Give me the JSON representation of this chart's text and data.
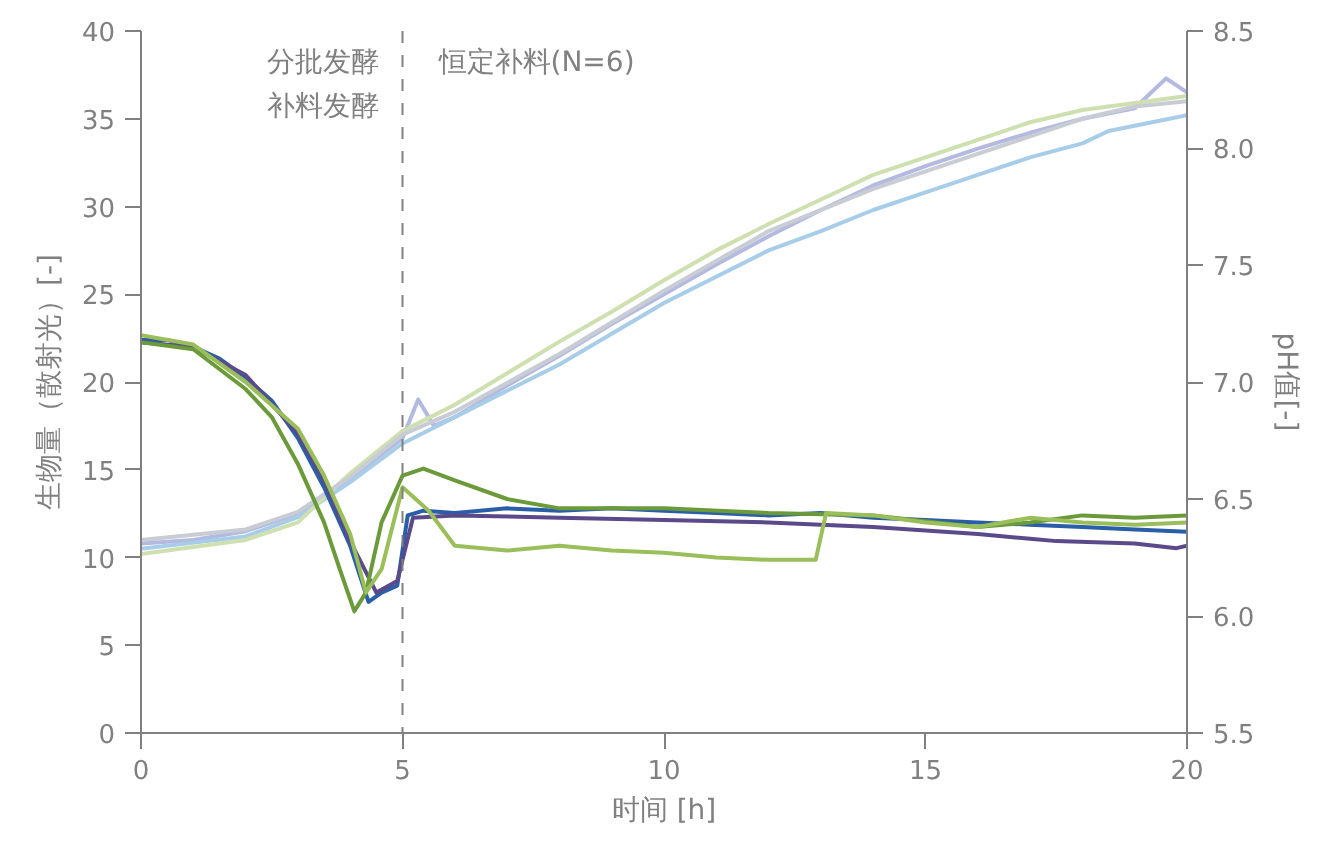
{
  "chart_data": {
    "type": "line",
    "xlabel": "时间 [h]",
    "ylabel": "生物量（散射光）[-]",
    "y2label": "pH值[-]",
    "annotations": [
      "分批发酵",
      "补料发酵",
      "恒定补料(N=6)"
    ],
    "xlim": [
      0,
      20
    ],
    "xticks": [
      0,
      5,
      10,
      15,
      20
    ],
    "ylim": [
      0,
      40
    ],
    "yticks": [
      0,
      5,
      10,
      15,
      20,
      25,
      30,
      35,
      40
    ],
    "y2lim": [
      5.5,
      8.5
    ],
    "y2ticks": [
      {
        "value": 5.5,
        "label": "5.5"
      },
      {
        "value": 6.0,
        "label": "6.0"
      },
      {
        "value": 6.5,
        "label": "6.5"
      },
      {
        "value": 7.0,
        "label": "7.0"
      },
      {
        "value": 7.5,
        "label": "7.5"
      },
      {
        "value": 8.0,
        "label": "8.0"
      },
      {
        "value": 8.5,
        "label": "8.5"
      }
    ],
    "grid": false,
    "line_style": "solid",
    "ref_lines": [
      {
        "axis": "x",
        "value": 5,
        "label": null,
        "color": "#808080",
        "line_style": "dashed"
      }
    ],
    "series": [
      {
        "color": "#b4b9e0",
        "x": [
          0,
          1,
          2,
          3,
          4,
          5,
          5.3,
          5.6,
          6,
          7,
          8,
          9,
          10,
          11,
          12,
          13,
          14,
          15,
          16,
          17,
          18,
          19,
          19.6,
          20
        ],
        "values": [
          10.8,
          11.0,
          11.5,
          12.5,
          14.5,
          16.8,
          19.0,
          17.5,
          18,
          19.8,
          21.5,
          23.3,
          25,
          26.7,
          28.3,
          29.8,
          31.2,
          32.3,
          33.3,
          34.2,
          35.0,
          35.6,
          37.3,
          36.5
        ]
      },
      {
        "color": "#a8cde8",
        "x": [
          0,
          2,
          3,
          4,
          5,
          6,
          8,
          10,
          12,
          13,
          14,
          15,
          16,
          17,
          18,
          18.5,
          19,
          20
        ],
        "values": [
          10.5,
          11.2,
          12.3,
          14.3,
          16.5,
          18.0,
          21.0,
          24.5,
          27.5,
          28.6,
          29.8,
          30.8,
          31.8,
          32.8,
          33.6,
          34.3,
          34.6,
          35.2
        ]
      },
      {
        "color": "#cfe0b0",
        "x": [
          0,
          2,
          3,
          4,
          5,
          6,
          7,
          8,
          9,
          10,
          11,
          12,
          13,
          14,
          15,
          16,
          17,
          18,
          19,
          20
        ],
        "values": [
          10.2,
          11.0,
          12.0,
          14.8,
          17.2,
          18.7,
          20.5,
          22.3,
          24.0,
          25.8,
          27.5,
          29.0,
          30.4,
          31.8,
          32.8,
          33.8,
          34.8,
          35.5,
          35.9,
          36.3
        ]
      },
      {
        "color": "#c8ccd4",
        "x": [
          0,
          2,
          3,
          4,
          5,
          6,
          8,
          10,
          12,
          14,
          15,
          16,
          17,
          18,
          19,
          20
        ],
        "values": [
          11.0,
          11.6,
          12.6,
          14.6,
          17.0,
          18.3,
          21.6,
          25.2,
          28.6,
          31.0,
          32.0,
          33.0,
          34.0,
          35.0,
          35.7,
          36.0
        ]
      },
      {
        "color": "#2b5ea8",
        "axis": "y2",
        "x": [
          0,
          0.5,
          1,
          1.5,
          2,
          2.5,
          3,
          3.5,
          4,
          4.35,
          4.6,
          4.9,
          5.1,
          5.4,
          6,
          7,
          8,
          9,
          10,
          11,
          12,
          13,
          14,
          15,
          16,
          17,
          18,
          19,
          20
        ],
        "values": [
          7.18,
          7.18,
          7.15,
          7.1,
          7.02,
          6.92,
          6.76,
          6.55,
          6.3,
          6.06,
          6.1,
          6.13,
          6.43,
          6.45,
          6.44,
          6.46,
          6.45,
          6.46,
          6.45,
          6.44,
          6.43,
          6.44,
          6.42,
          6.41,
          6.4,
          6.39,
          6.38,
          6.37,
          6.36
        ]
      },
      {
        "color": "#5a4a8a",
        "axis": "y2",
        "x": [
          0,
          1,
          2,
          3,
          3.5,
          4,
          4.5,
          4.9,
          5.2,
          6,
          8,
          10,
          12,
          14,
          16,
          17,
          17.5,
          19,
          19.8,
          20
        ],
        "values": [
          7.17,
          7.15,
          7.03,
          6.78,
          6.58,
          6.32,
          6.1,
          6.15,
          6.42,
          6.43,
          6.42,
          6.41,
          6.4,
          6.38,
          6.35,
          6.33,
          6.32,
          6.31,
          6.29,
          6.3
        ]
      },
      {
        "color": "#6a9a3a",
        "axis": "y2",
        "x": [
          0,
          1,
          2,
          2.5,
          3,
          3.5,
          3.8,
          4.08,
          4.3,
          4.6,
          5,
          5.4,
          6,
          7,
          8,
          10,
          12,
          14,
          16,
          17,
          18,
          19,
          20
        ],
        "values": [
          7.17,
          7.14,
          6.97,
          6.85,
          6.65,
          6.4,
          6.2,
          6.02,
          6.1,
          6.4,
          6.6,
          6.63,
          6.58,
          6.5,
          6.46,
          6.46,
          6.44,
          6.43,
          6.38,
          6.4,
          6.43,
          6.42,
          6.43
        ]
      },
      {
        "color": "#9abf5a",
        "axis": "y2",
        "x": [
          0,
          1,
          2,
          3,
          3.5,
          4,
          4.3,
          4.6,
          5,
          5.5,
          6,
          7,
          8,
          9,
          10,
          11,
          12,
          12.9,
          13.1,
          14,
          15,
          16,
          17,
          18,
          19,
          20
        ],
        "values": [
          7.2,
          7.16,
          7.0,
          6.8,
          6.6,
          6.35,
          6.1,
          6.2,
          6.55,
          6.45,
          6.3,
          6.28,
          6.3,
          6.28,
          6.27,
          6.25,
          6.24,
          6.24,
          6.44,
          6.43,
          6.4,
          6.38,
          6.42,
          6.4,
          6.39,
          6.4
        ]
      }
    ]
  }
}
